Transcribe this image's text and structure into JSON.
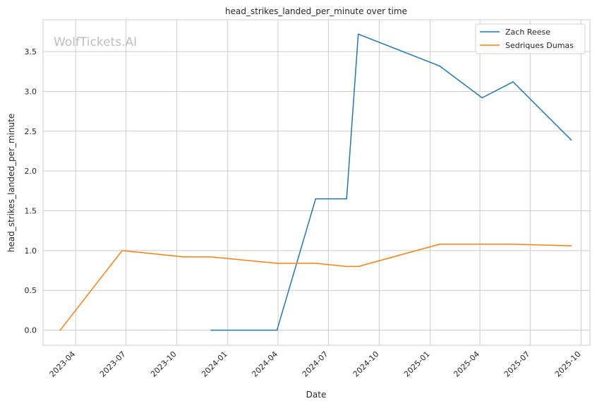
{
  "chart_data": {
    "type": "line",
    "title": "head_strikes_landed_per_minute over time",
    "xlabel": "Date",
    "ylabel": "head_strikes_landed_per_minute",
    "watermark": "WolfTickets.AI",
    "x_range": [
      "2023-02-01",
      "2025-10-17"
    ],
    "ylim": [
      -0.19,
      3.9
    ],
    "x_ticks": [
      "2023-04",
      "2023-07",
      "2023-10",
      "2024-01",
      "2024-04",
      "2024-07",
      "2024-10",
      "2025-01",
      "2025-04",
      "2025-07",
      "2025-10"
    ],
    "y_ticks": [
      "0.0",
      "0.5",
      "1.0",
      "1.5",
      "2.0",
      "2.5",
      "3.0",
      "3.5"
    ],
    "grid": true,
    "legend_position": "top-right",
    "series": [
      {
        "name": "Zach Reese",
        "color": "#1f77b4",
        "points": [
          {
            "x": "2023-12-02",
            "y": 0.0
          },
          {
            "x": "2024-03-30",
            "y": 0.0
          },
          {
            "x": "2024-06-08",
            "y": 1.65
          },
          {
            "x": "2024-08-03",
            "y": 1.65
          },
          {
            "x": "2024-08-24",
            "y": 3.72
          },
          {
            "x": "2025-01-18",
            "y": 3.32
          },
          {
            "x": "2025-04-05",
            "y": 2.92
          },
          {
            "x": "2025-05-31",
            "y": 3.12
          },
          {
            "x": "2025-09-13",
            "y": 2.39
          }
        ]
      },
      {
        "name": "Sedriques Dumas",
        "color": "#ff7f0e",
        "points": [
          {
            "x": "2023-03-04",
            "y": 0.0
          },
          {
            "x": "2023-06-24",
            "y": 1.0
          },
          {
            "x": "2023-10-14",
            "y": 0.92
          },
          {
            "x": "2023-12-02",
            "y": 0.92
          },
          {
            "x": "2024-03-30",
            "y": 0.84
          },
          {
            "x": "2024-06-08",
            "y": 0.84
          },
          {
            "x": "2024-08-03",
            "y": 0.8
          },
          {
            "x": "2024-08-24",
            "y": 0.8
          },
          {
            "x": "2025-01-18",
            "y": 1.08
          },
          {
            "x": "2025-04-05",
            "y": 1.08
          },
          {
            "x": "2025-05-31",
            "y": 1.08
          },
          {
            "x": "2025-09-13",
            "y": 1.06
          }
        ]
      }
    ]
  }
}
